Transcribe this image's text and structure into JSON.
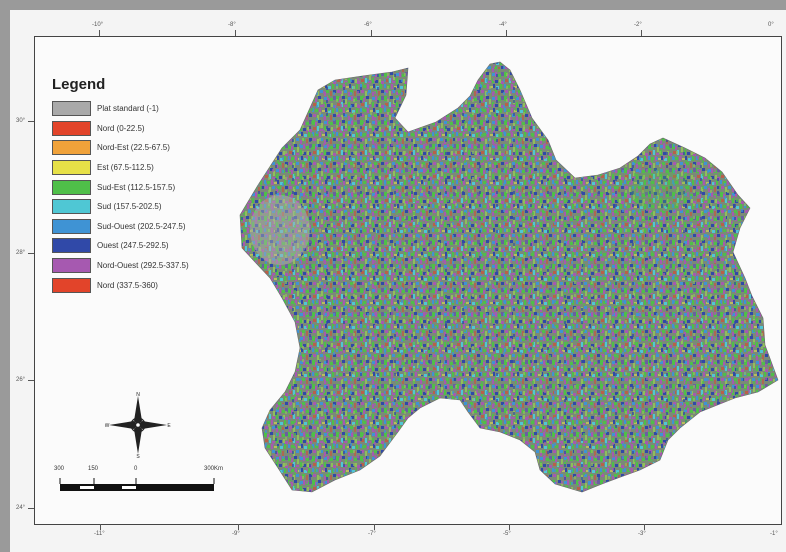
{
  "legend": {
    "title": "Legend",
    "items": [
      {
        "label": "Plat standard (-1)",
        "color": "#a9a9a9"
      },
      {
        "label": "Nord (0-22.5)",
        "color": "#e2442a"
      },
      {
        "label": "Nord-Est (22.5-67.5)",
        "color": "#f0a23a"
      },
      {
        "label": "Est (67.5-112.5)",
        "color": "#e6e047"
      },
      {
        "label": "Sud-Est (112.5-157.5)",
        "color": "#4fbf49"
      },
      {
        "label": "Sud (157.5-202.5)",
        "color": "#4fc7d4"
      },
      {
        "label": "Sud-Ouest (202.5-247.5)",
        "color": "#3f93d4"
      },
      {
        "label": "Ouest (247.5-292.5)",
        "color": "#3049a8"
      },
      {
        "label": "Nord-Ouest (292.5-337.5)",
        "color": "#a659b0"
      },
      {
        "label": "Nord (337.5-360)",
        "color": "#e2442a"
      }
    ]
  },
  "compass": {
    "north": "N",
    "south": "S",
    "east": "E",
    "west": "W"
  },
  "scale": {
    "labels": [
      "300",
      "150",
      "0",
      "300Km"
    ]
  },
  "frame_labels": {
    "top": [
      "-10°",
      "-8°",
      "-6°",
      "-4°",
      "-2°",
      "0°"
    ],
    "bottom": [
      "-11°",
      "-9°",
      "-7°",
      "-5°",
      "-3°",
      "-1°"
    ],
    "left": [
      "30°",
      "28°",
      "26°",
      "24°"
    ]
  }
}
